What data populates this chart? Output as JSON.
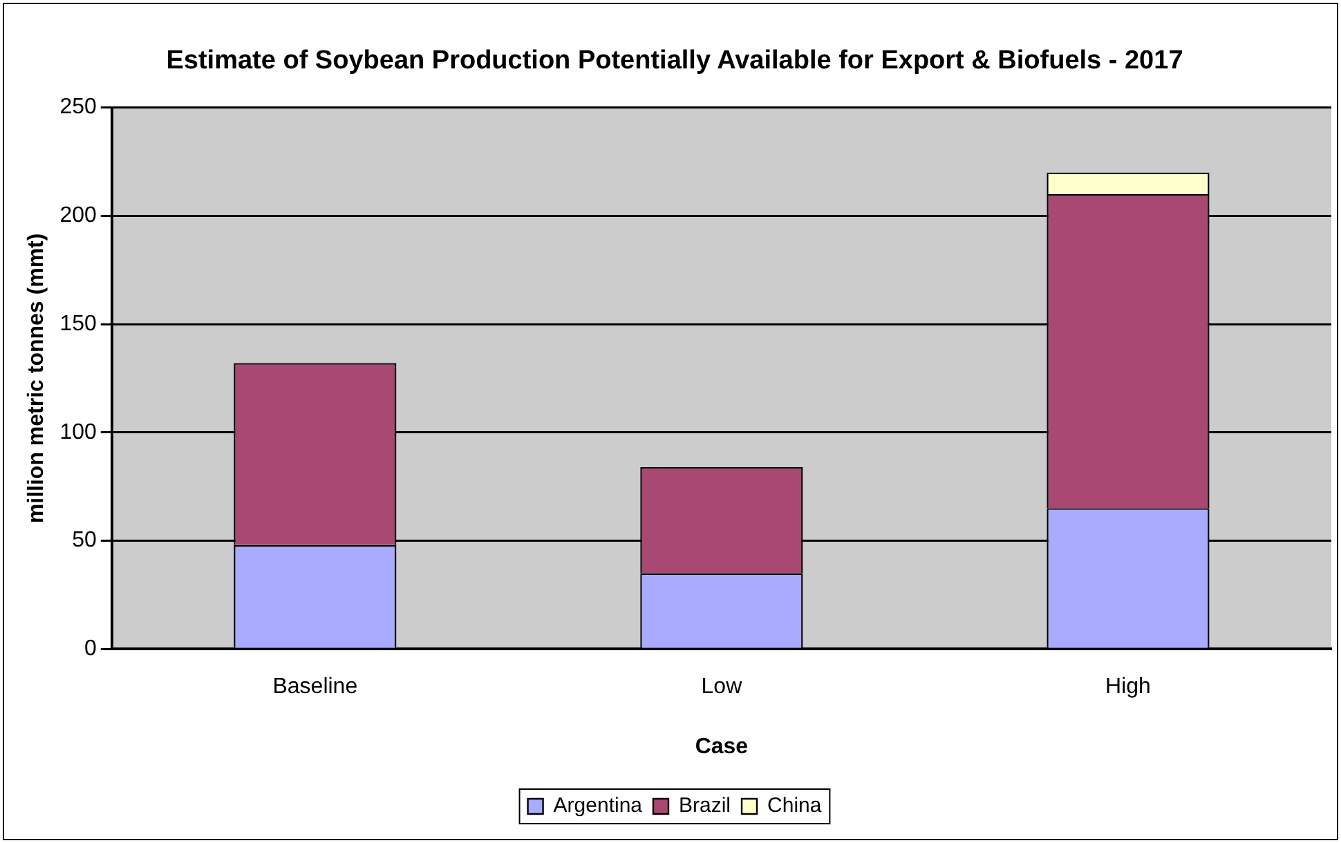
{
  "chart_data": {
    "type": "bar",
    "title": "Estimate of Soybean Production Potentially Available for Export & Biofuels - 2017",
    "xlabel": "Case",
    "ylabel": "million metric tonnes (mmt)",
    "categories": [
      "Baseline",
      "Low",
      "High"
    ],
    "stacked": true,
    "series": [
      {
        "name": "Argentina",
        "color": "#a9abff",
        "values": [
          48,
          35,
          65
        ]
      },
      {
        "name": "Brazil",
        "color": "#aa4874",
        "values": [
          84,
          49,
          145
        ]
      },
      {
        "name": "China",
        "color": "#ffffcc",
        "values": [
          0,
          0,
          10
        ]
      }
    ],
    "ylim": [
      0,
      250
    ],
    "yticks": [
      0,
      50,
      100,
      150,
      200,
      250
    ],
    "grid": "y",
    "legend": "bottom"
  }
}
